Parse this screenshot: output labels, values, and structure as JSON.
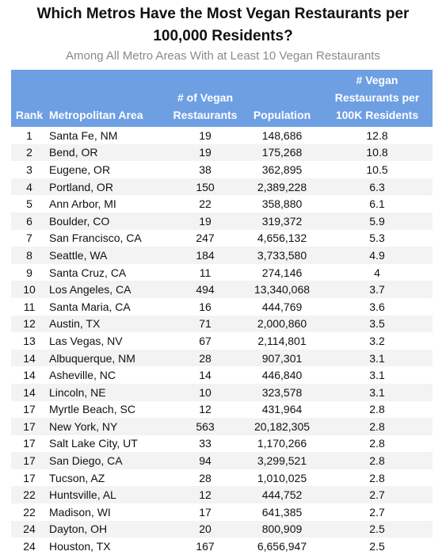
{
  "header": {
    "title": "Which Metros Have the Most Vegan Restaurants per 100,000 Residents?",
    "subtitle": "Among All Metro Areas With at Least 10 Vegan Restaurants"
  },
  "table": {
    "columns": [
      "Rank",
      "Metropolitan Area",
      "# of Vegan Restaurants",
      "Population",
      "# Vegan Restaurants per 100K Residents"
    ],
    "rows": [
      [
        "1",
        "Santa Fe, NM",
        "19",
        "148,686",
        "12.8"
      ],
      [
        "2",
        "Bend, OR",
        "19",
        "175,268",
        "10.8"
      ],
      [
        "3",
        "Eugene, OR",
        "38",
        "362,895",
        "10.5"
      ],
      [
        "4",
        "Portland, OR",
        "150",
        "2,389,228",
        "6.3"
      ],
      [
        "5",
        "Ann Arbor, MI",
        "22",
        "358,880",
        "6.1"
      ],
      [
        "6",
        "Boulder, CO",
        "19",
        "319,372",
        "5.9"
      ],
      [
        "7",
        "San Francisco, CA",
        "247",
        "4,656,132",
        "5.3"
      ],
      [
        "8",
        "Seattle, WA",
        "184",
        "3,733,580",
        "4.9"
      ],
      [
        "9",
        "Santa Cruz, CA",
        "11",
        "274,146",
        "4"
      ],
      [
        "10",
        "Los Angeles, CA",
        "494",
        "13,340,068",
        "3.7"
      ],
      [
        "11",
        "Santa Maria, CA",
        "16",
        "444,769",
        "3.6"
      ],
      [
        "12",
        "Austin, TX",
        "71",
        "2,000,860",
        "3.5"
      ],
      [
        "13",
        "Las Vegas, NV",
        "67",
        "2,114,801",
        "3.2"
      ],
      [
        "14",
        "Albuquerque, NM",
        "28",
        "907,301",
        "3.1"
      ],
      [
        "14",
        "Asheville, NC",
        "14",
        "446,840",
        "3.1"
      ],
      [
        "14",
        "Lincoln, NE",
        "10",
        "323,578",
        "3.1"
      ],
      [
        "17",
        "Myrtle Beach, SC",
        "12",
        "431,964",
        "2.8"
      ],
      [
        "17",
        "New York, NY",
        "563",
        "20,182,305",
        "2.8"
      ],
      [
        "17",
        "Salt Lake City, UT",
        "33",
        "1,170,266",
        "2.8"
      ],
      [
        "17",
        "San Diego, CA",
        "94",
        "3,299,521",
        "2.8"
      ],
      [
        "17",
        "Tucson, AZ",
        "28",
        "1,010,025",
        "2.8"
      ],
      [
        "22",
        "Huntsville, AL",
        "12",
        "444,752",
        "2.7"
      ],
      [
        "22",
        "Madison, WI",
        "17",
        "641,385",
        "2.7"
      ],
      [
        "24",
        "Dayton, OH",
        "20",
        "800,909",
        "2.5"
      ],
      [
        "24",
        "Houston, TX",
        "167",
        "6,656,947",
        "2.5"
      ]
    ]
  }
}
